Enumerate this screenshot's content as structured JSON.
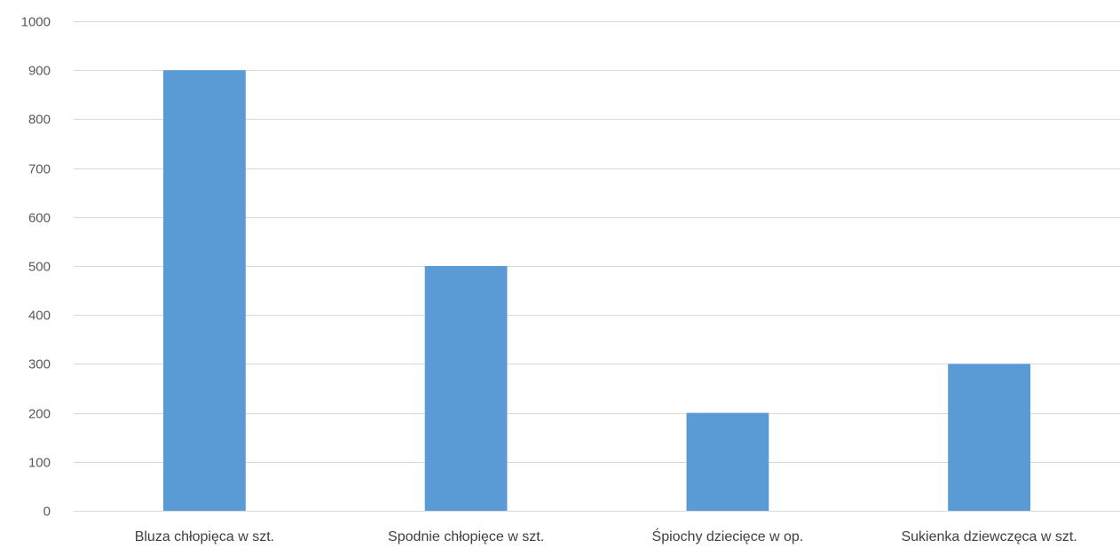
{
  "chart_data": {
    "type": "bar",
    "categories": [
      "Bluza chłopięca w szt.",
      "Spodnie chłopięce w szt.",
      "Śpiochy dziecięce w op.",
      "Sukienka dziewczęca w szt."
    ],
    "values": [
      900,
      500,
      200,
      300
    ],
    "ylim": [
      0,
      1000
    ],
    "yticks": [
      "0",
      "100",
      "200",
      "300",
      "400",
      "500",
      "600",
      "700",
      "800",
      "900",
      "1000"
    ],
    "title": "",
    "xlabel": "",
    "ylabel": "",
    "grid": true,
    "legend": "none",
    "colors": {
      "bar": "#5B9BD5",
      "grid": "#D9D9D9",
      "axis": "#D9D9D9"
    }
  }
}
